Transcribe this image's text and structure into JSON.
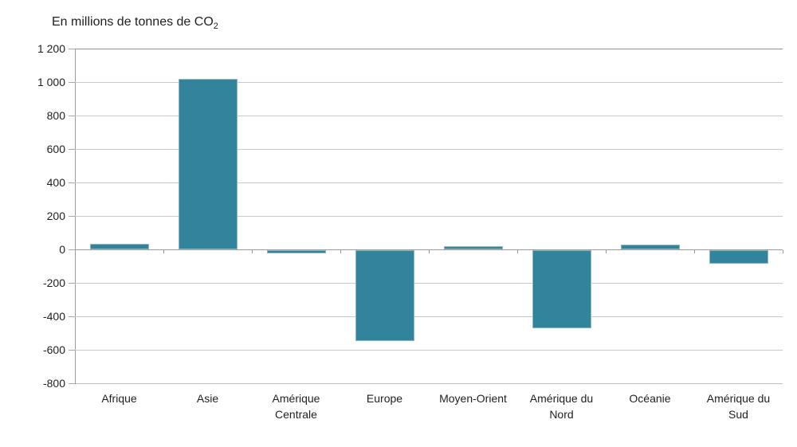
{
  "title": {
    "text": "En millions de tonnes de CO",
    "subscript": "2"
  },
  "chart_data": {
    "type": "bar",
    "title": "En millions de tonnes de CO2",
    "categories": [
      "Afrique",
      "Asie",
      "Amérique Centrale",
      "Europe",
      "Moyen-Orient",
      "Amérique du Nord",
      "Océanie",
      "Amérique du Sud"
    ],
    "values": [
      35,
      1020,
      -20,
      -545,
      20,
      -465,
      30,
      -80
    ],
    "xlabel": "",
    "ylabel": "En millions de tonnes de CO2",
    "ylim": [
      -800,
      1200
    ],
    "ytick_step": 200,
    "yticks": [
      {
        "v": 1200,
        "label": "1 200"
      },
      {
        "v": 1000,
        "label": "1 000"
      },
      {
        "v": 800,
        "label": "800"
      },
      {
        "v": 600,
        "label": "600"
      },
      {
        "v": 400,
        "label": "400"
      },
      {
        "v": 200,
        "label": "200"
      },
      {
        "v": 0,
        "label": "0"
      },
      {
        "v": -200,
        "label": "-200"
      },
      {
        "v": -400,
        "label": "-400"
      },
      {
        "v": -600,
        "label": "-600"
      },
      {
        "v": -800,
        "label": "-800"
      }
    ],
    "grid": true,
    "legend": false,
    "colors": {
      "bar_fill": "#31849B",
      "bar_border": "#8fb8c6",
      "gridline": "#c9c9c9",
      "axis": "#9a9a9a",
      "text": "#1f1f1f",
      "background": "#ffffff"
    }
  }
}
